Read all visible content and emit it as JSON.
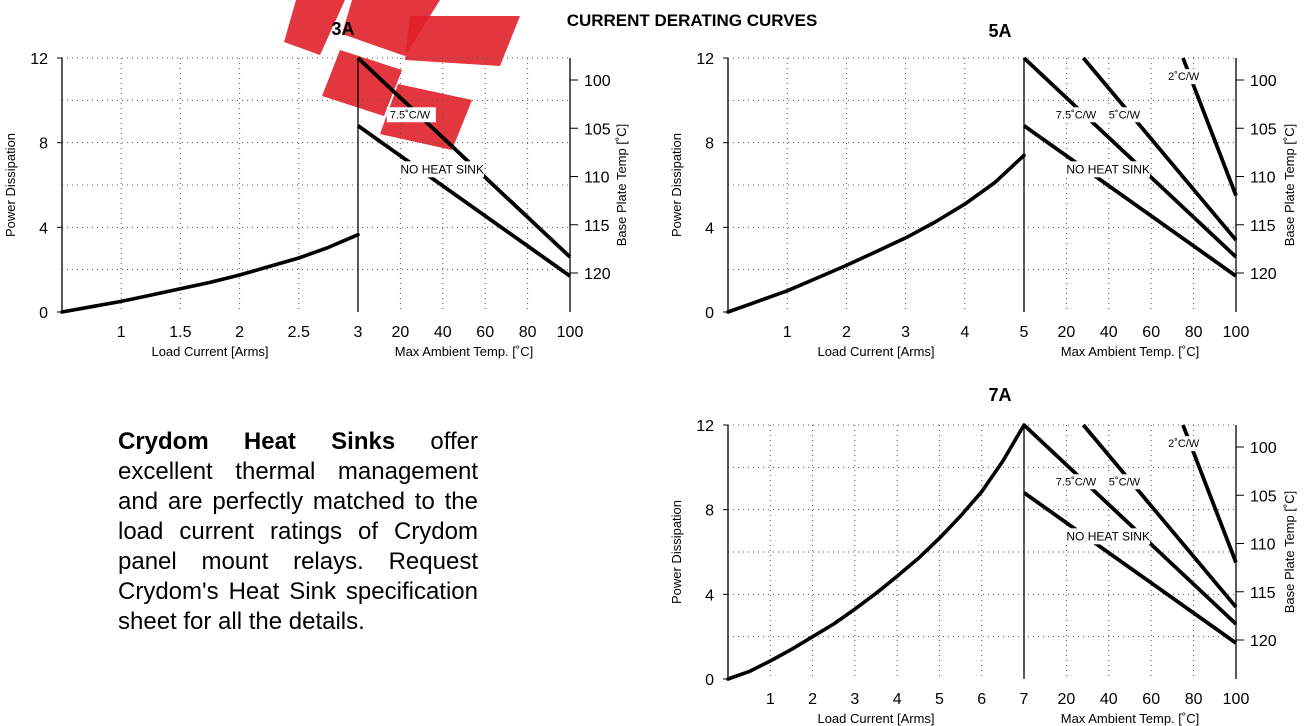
{
  "header": {
    "title": "CURRENT DERATING CURVES"
  },
  "blurb": {
    "lead": "Crydom Heat Sinks",
    "body": " offer excellent thermal management and are perfectly matched to the load current ratings of Crydom panel mount relays.  Request Crydom's Heat Sink specification sheet for all the details."
  },
  "colors": {
    "watermark": "#e0202a",
    "grid": "#555555",
    "curve": "#000000"
  },
  "chart_data": [
    {
      "type": "line",
      "title": "3A",
      "ylabel": "Power Dissipation",
      "ylim": [
        0,
        12
      ],
      "yticks": [
        "0",
        "4",
        "8",
        "12"
      ],
      "left_panel": {
        "xlabel": "Load Current  [Arms]",
        "xlim": [
          0.5,
          3
        ],
        "xticks": [
          "1",
          "1.5",
          "2",
          "2.5",
          "3"
        ],
        "series": [
          {
            "x": [
              0.5,
              0.75,
              1.0,
              1.25,
              1.5,
              1.75,
              2.0,
              2.25,
              2.5,
              2.75,
              3.0
            ],
            "y": [
              0,
              0.25,
              0.5,
              0.8,
              1.1,
              1.4,
              1.75,
              2.15,
              2.55,
              3.05,
              3.65
            ]
          }
        ]
      },
      "right_panel": {
        "xlabel": "Max Ambient Temp. [˚C]",
        "xlim": [
          0,
          100
        ],
        "xticks": [
          "20",
          "40",
          "60",
          "80",
          "100"
        ],
        "y2label": "Base Plate Temp [˚C]",
        "y2ticks": [
          "100",
          "105",
          "110",
          "115",
          "120"
        ],
        "series": [
          {
            "name": "7.5˚C/W",
            "x": [
              0,
              100
            ],
            "y": [
              12,
              2.6
            ]
          },
          {
            "name": "NO HEAT SINK",
            "x": [
              0,
              100
            ],
            "y": [
              8.8,
              1.7
            ]
          }
        ]
      }
    },
    {
      "type": "line",
      "title": "5A",
      "ylabel": "Power Dissipation",
      "ylim": [
        0,
        12
      ],
      "yticks": [
        "0",
        "4",
        "8",
        "12"
      ],
      "left_panel": {
        "xlabel": "Load Current  [Arms]",
        "xlim": [
          0,
          5
        ],
        "xticks": [
          "1",
          "2",
          "3",
          "4",
          "5"
        ],
        "series": [
          {
            "x": [
              0,
              0.5,
              1,
              1.5,
              2,
              2.5,
              3,
              3.5,
              4,
              4.5,
              5
            ],
            "y": [
              0,
              0.5,
              1.0,
              1.6,
              2.2,
              2.85,
              3.5,
              4.25,
              5.1,
              6.1,
              7.4
            ]
          }
        ]
      },
      "right_panel": {
        "xlabel": "Max Ambient Temp. [˚C]",
        "xlim": [
          0,
          100
        ],
        "xticks": [
          "20",
          "40",
          "60",
          "80",
          "100"
        ],
        "y2label": "Base Plate Temp [˚C]",
        "y2ticks": [
          "100",
          "105",
          "110",
          "115",
          "120"
        ],
        "series": [
          {
            "name": "2˚C/W",
            "x": [
              75,
              100
            ],
            "y": [
              12,
              5.5
            ]
          },
          {
            "name": "5˚C/W",
            "x": [
              28,
              100
            ],
            "y": [
              12,
              3.4
            ]
          },
          {
            "name": "7.5˚C/W",
            "x": [
              0,
              100
            ],
            "y": [
              12,
              2.6
            ]
          },
          {
            "name": "NO HEAT SINK",
            "x": [
              0,
              100
            ],
            "y": [
              8.8,
              1.7
            ]
          }
        ]
      }
    },
    {
      "type": "line",
      "title": "7A",
      "ylabel": "Power Dissipation",
      "ylim": [
        0,
        12
      ],
      "yticks": [
        "0",
        "4",
        "8",
        "12"
      ],
      "left_panel": {
        "xlabel": "Load Current  [Arms]",
        "xlim": [
          0,
          7
        ],
        "xticks": [
          "1",
          "2",
          "3",
          "4",
          "5",
          "6",
          "7"
        ],
        "series": [
          {
            "x": [
              0,
              0.5,
              1,
              1.5,
              2,
              2.5,
              3,
              3.5,
              4,
              4.5,
              5,
              5.5,
              6,
              6.5,
              7
            ],
            "y": [
              0,
              0.35,
              0.85,
              1.4,
              2.0,
              2.6,
              3.3,
              4.05,
              4.85,
              5.7,
              6.65,
              7.7,
              8.85,
              10.3,
              12
            ]
          }
        ]
      },
      "right_panel": {
        "xlabel": "Max Ambient Temp. [˚C]",
        "xlim": [
          0,
          100
        ],
        "xticks": [
          "20",
          "40",
          "60",
          "80",
          "100"
        ],
        "y2label": "Base Plate Temp [˚C]",
        "y2ticks": [
          "100",
          "105",
          "110",
          "115",
          "120"
        ],
        "series": [
          {
            "name": "2˚C/W",
            "x": [
              75,
              100
            ],
            "y": [
              12,
              5.5
            ]
          },
          {
            "name": "5˚C/W",
            "x": [
              28,
              100
            ],
            "y": [
              12,
              3.4
            ]
          },
          {
            "name": "7.5˚C/W",
            "x": [
              0,
              100
            ],
            "y": [
              12,
              2.6
            ]
          },
          {
            "name": "NO HEAT SINK",
            "x": [
              0,
              100
            ],
            "y": [
              8.8,
              1.7
            ]
          }
        ]
      }
    }
  ]
}
